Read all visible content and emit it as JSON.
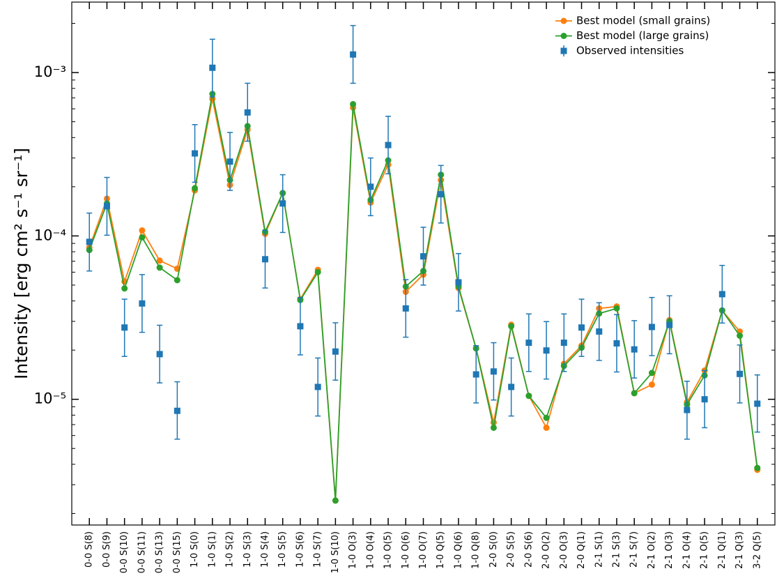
{
  "chart_data": {
    "type": "line",
    "ylabel": "Intensity [erg cm² s⁻¹ sr⁻¹]",
    "log_y": true,
    "legend": "upper right",
    "categories": [
      "0-0 S(8)",
      "0-0 S(9)",
      "0-0 S(10)",
      "0-0 S(11)",
      "0-0 S(13)",
      "0-0 S(15)",
      "1-0 S(0)",
      "1-0 S(1)",
      "1-0 S(2)",
      "1-0 S(3)",
      "1-0 S(4)",
      "1-0 S(5)",
      "1-0 S(6)",
      "1-0 S(7)",
      "1-0 S(10)",
      "1-0 O(3)",
      "1-0 O(4)",
      "1-0 O(5)",
      "1-0 O(6)",
      "1-0 O(7)",
      "1-0 Q(5)",
      "1-0 Q(6)",
      "1-0 Q(8)",
      "2-0 S(0)",
      "2-0 S(5)",
      "2-0 S(6)",
      "2-0 O(2)",
      "2-0 O(3)",
      "2-0 Q(1)",
      "2-1 S(1)",
      "2-1 S(3)",
      "2-1 S(7)",
      "2-1 O(2)",
      "2-1 O(3)",
      "2-1 O(4)",
      "2-1 O(5)",
      "2-1 Q(1)",
      "2-1 Q(3)",
      "3-2 Q(5)"
    ],
    "series": [
      {
        "name": "Best model (small grains)",
        "color": "#ff7f0e",
        "marker": "circle",
        "values": [
          8.5e-05,
          0.000169,
          5.26e-05,
          0.000108,
          7.06e-05,
          6.3e-05,
          0.00019,
          0.00069,
          0.000205,
          0.000447,
          0.000103,
          0.000183,
          4.1e-05,
          6.2e-05,
          2.4e-06,
          0.00061,
          0.00016,
          0.000273,
          4.55e-05,
          5.8e-05,
          0.00022,
          4.8e-05,
          2.05e-05,
          7.2e-06,
          2.86e-05,
          1.05e-05,
          6.7e-06,
          1.65e-05,
          2.13e-05,
          3.6e-05,
          3.7e-05,
          1.09e-05,
          1.23e-05,
          3.05e-05,
          9.6e-06,
          1.5e-05,
          3.5e-05,
          2.6e-05,
          3.7e-06
        ]
      },
      {
        "name": "Best model (large grains)",
        "color": "#2ca02c",
        "marker": "circle",
        "values": [
          8.2e-05,
          0.000158,
          4.77e-05,
          9.8e-05,
          6.4e-05,
          5.36e-05,
          0.000196,
          0.00074,
          0.00022,
          0.00047,
          0.000106,
          0.000183,
          4.05e-05,
          6e-05,
          2.4e-06,
          0.00064,
          0.000166,
          0.00029,
          4.9e-05,
          6.1e-05,
          0.000237,
          4.9e-05,
          2.05e-05,
          6.7e-06,
          2.8e-05,
          1.05e-05,
          7.7e-06,
          1.6e-05,
          2.07e-05,
          3.35e-05,
          3.6e-05,
          1.09e-05,
          1.45e-05,
          3e-05,
          9.3e-06,
          1.4e-05,
          3.5e-05,
          2.45e-05,
          3.8e-06
        ]
      },
      {
        "name": "Observed intensities",
        "color": "#1f77b4",
        "marker": "square",
        "values": [
          9.2e-05,
          0.000152,
          2.75e-05,
          3.86e-05,
          1.89e-05,
          8.5e-06,
          0.00032,
          0.00107,
          0.000285,
          0.00057,
          7.2e-05,
          0.000158,
          2.8e-05,
          1.19e-05,
          1.96e-05,
          0.00129,
          0.0002,
          0.00036,
          3.6e-05,
          7.5e-05,
          0.00018,
          5.2e-05,
          1.42e-05,
          1.48e-05,
          1.19e-05,
          2.22e-05,
          1.99e-05,
          2.22e-05,
          2.75e-05,
          2.6e-05,
          2.2e-05,
          2.02e-05,
          2.77e-05,
          2.85e-05,
          8.6e-06,
          1e-05,
          4.4e-05,
          1.43e-05,
          9.4e-06
        ],
        "yerr_low": [
          6.1e-05,
          0.000101,
          1.83e-05,
          2.57e-05,
          1.26e-05,
          5.7e-06,
          0.000213,
          0.00071,
          0.00019,
          0.00038,
          4.8e-05,
          0.000105,
          1.87e-05,
          7.9e-06,
          1.31e-05,
          0.00086,
          0.000133,
          0.00024,
          2.4e-05,
          5e-05,
          0.00012,
          3.47e-05,
          9.5e-06,
          9.9e-06,
          7.9e-06,
          1.48e-05,
          1.33e-05,
          1.48e-05,
          1.83e-05,
          1.73e-05,
          1.47e-05,
          1.35e-05,
          1.85e-05,
          1.9e-05,
          5.7e-06,
          6.7e-06,
          2.93e-05,
          9.5e-06,
          6.3e-06
        ],
        "yerr_high": [
          0.000138,
          0.000228,
          4.1e-05,
          5.8e-05,
          2.84e-05,
          1.28e-05,
          0.00048,
          0.0016,
          0.00043,
          0.00086,
          0.000108,
          0.000237,
          4.2e-05,
          1.79e-05,
          2.94e-05,
          0.00194,
          0.0003,
          0.00054,
          5.4e-05,
          0.000113,
          0.00027,
          7.8e-05,
          2.13e-05,
          2.22e-05,
          1.79e-05,
          3.33e-05,
          2.99e-05,
          3.33e-05,
          4.1e-05,
          3.9e-05,
          3.3e-05,
          3.03e-05,
          4.2e-05,
          4.3e-05,
          1.29e-05,
          1.5e-05,
          6.6e-05,
          2.15e-05,
          1.41e-05
        ]
      }
    ],
    "ylim": [
      1.7e-06,
      0.0027
    ],
    "yticks": [
      {
        "value": 1e-05,
        "label": "10⁻⁵"
      },
      {
        "value": 0.0001,
        "label": "10⁻⁴"
      },
      {
        "value": 0.001,
        "label": "10⁻³"
      }
    ],
    "yticks_minor": [
      2e-06,
      3e-06,
      4e-06,
      5e-06,
      6e-06,
      7e-06,
      8e-06,
      9e-06,
      2e-05,
      3e-05,
      4e-05,
      5e-05,
      6e-05,
      7e-05,
      8e-05,
      9e-05,
      0.0002,
      0.0003,
      0.0004,
      0.0005,
      0.0006,
      0.0007,
      0.0008,
      0.0009,
      0.002
    ]
  }
}
